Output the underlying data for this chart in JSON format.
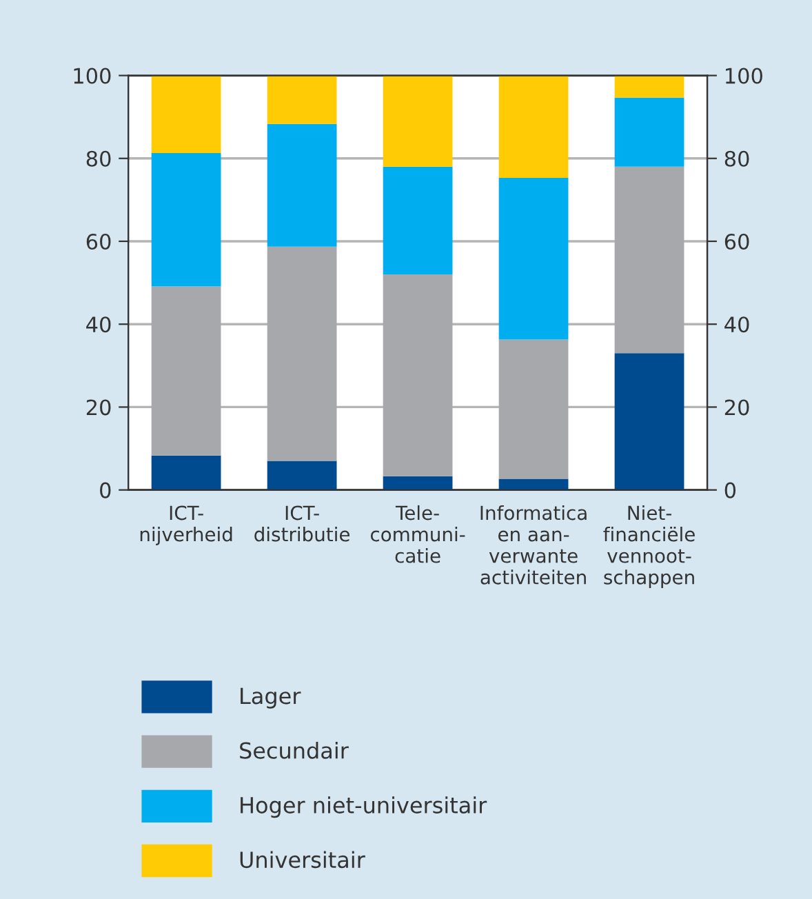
{
  "chart_data": {
    "type": "bar",
    "stacked": true,
    "categories": [
      "ICT-\nnijverheid",
      "ICT-\ndistributie",
      "Tele-\ncommuni-\ncatie",
      "Informatica\nen aan-\nverwante\nactiviteiten",
      "Niet-\nfinanciële\nvennoot-\nschappen"
    ],
    "series": [
      {
        "name": "Lager",
        "color": "#004a8f",
        "values": [
          8.3,
          7.0,
          3.3,
          2.7,
          33.0
        ]
      },
      {
        "name": "Secundair",
        "color": "#a7a8ab",
        "values": [
          40.8,
          51.7,
          48.7,
          33.6,
          45.0
        ]
      },
      {
        "name": "Hoger niet-universitair",
        "color": "#00adee",
        "values": [
          32.2,
          29.6,
          26.0,
          39.0,
          16.7
        ]
      },
      {
        "name": "Universitair",
        "color": "#ffcb05",
        "values": [
          18.7,
          11.7,
          22.0,
          24.7,
          5.3
        ]
      }
    ],
    "ylim": [
      0,
      100
    ],
    "yticks": [
      0,
      20,
      40,
      60,
      80,
      100
    ],
    "y2lim": [
      0,
      100
    ],
    "y2ticks": [
      0,
      20,
      40,
      60,
      80,
      100
    ],
    "grid": "y",
    "legend": "bottom"
  }
}
